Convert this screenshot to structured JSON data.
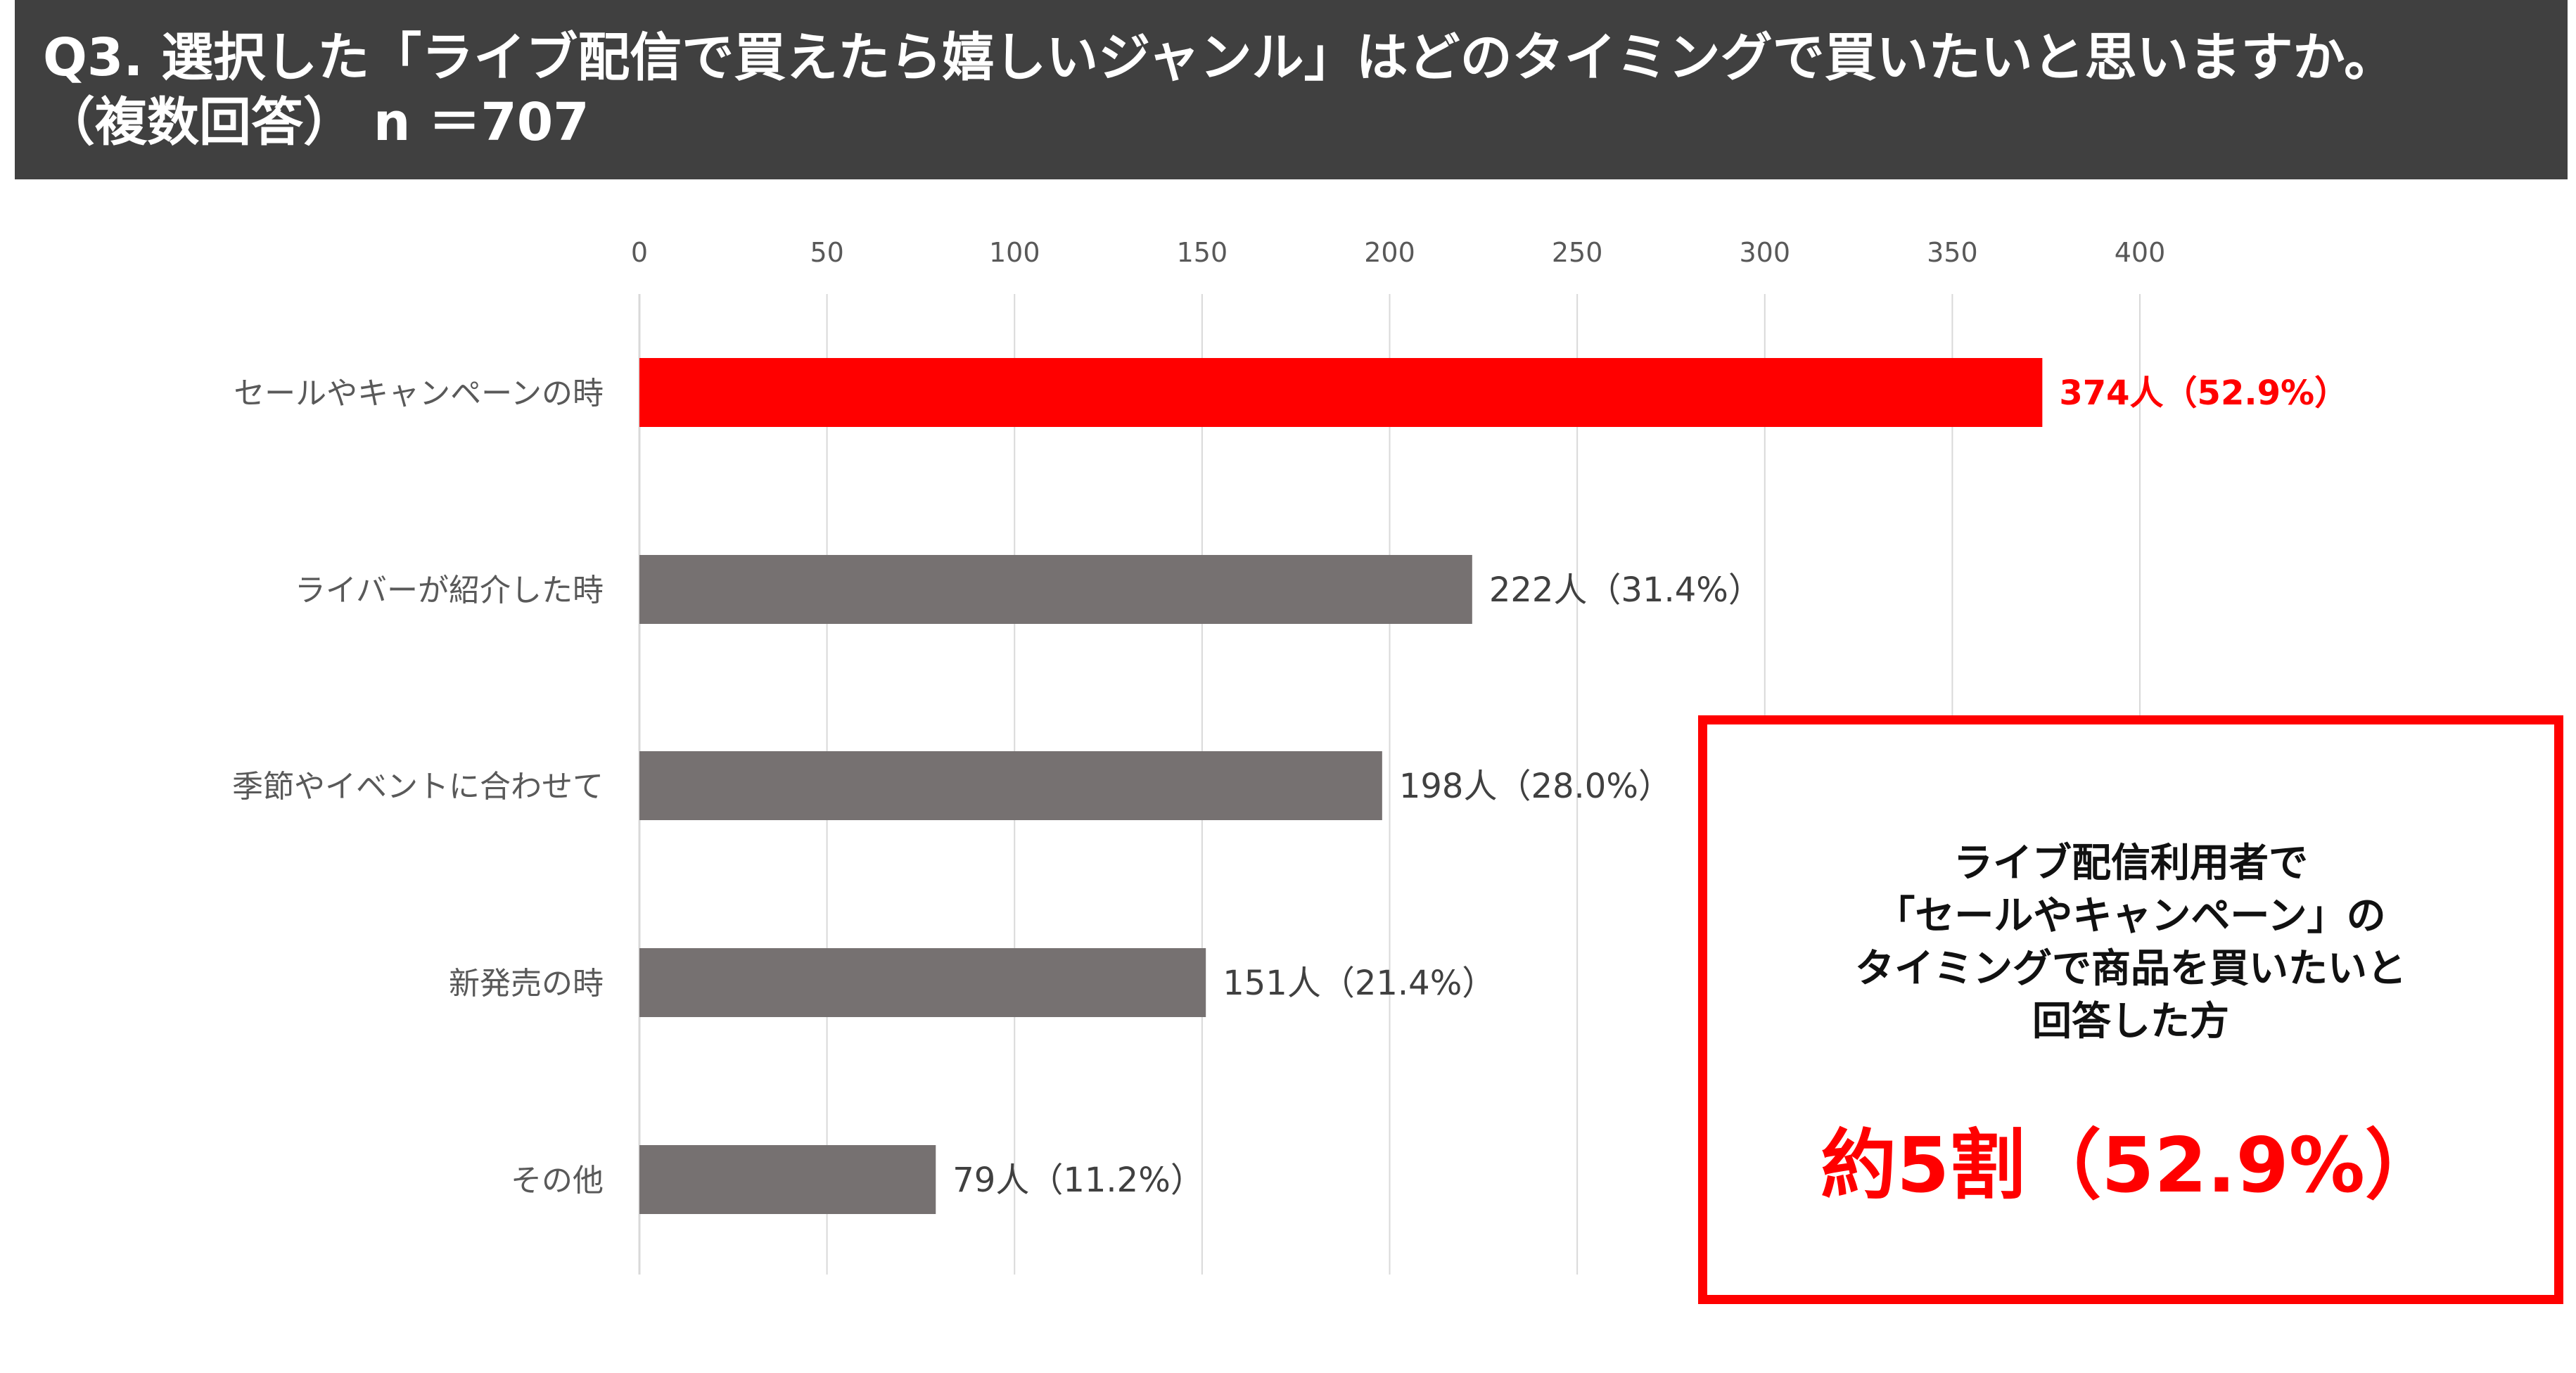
{
  "header": {
    "line1": "Q3. 選択した「ライブ配信で買えたら嬉しいジャンル」はどのタイミングで買いたいと思いますか。",
    "line2": "（複数回答） n ＝707"
  },
  "chart_data": {
    "type": "bar",
    "orientation": "horizontal",
    "categories": [
      "セールやキャンペーンの時",
      "ライバーが紹介した時",
      "季節やイベントに合わせて",
      "新発売の時",
      "その他"
    ],
    "values": [
      374,
      222,
      198,
      151,
      79
    ],
    "value_labels": [
      "374人（52.9%）",
      "222人（31.4%）",
      "198人（28.0%）",
      "151人（21.4%）",
      "79人（11.2%）"
    ],
    "x_ticks": [
      0,
      50,
      100,
      150,
      200,
      250,
      300,
      350,
      400
    ],
    "xlim": [
      0,
      400
    ],
    "x_axis_position": "top",
    "grid": true,
    "highlight_index": 0,
    "colors": {
      "highlight": "#ff0000",
      "bar": "#767171",
      "grid": "#d9d9d9"
    }
  },
  "callout": {
    "lines": [
      "ライブ配信利用者で",
      "「セールやキャンペーン」の",
      "タイミングで商品を買いたいと",
      "回答した方"
    ],
    "highlight": "約5割（52.9%）",
    "color": "#ff0000"
  }
}
